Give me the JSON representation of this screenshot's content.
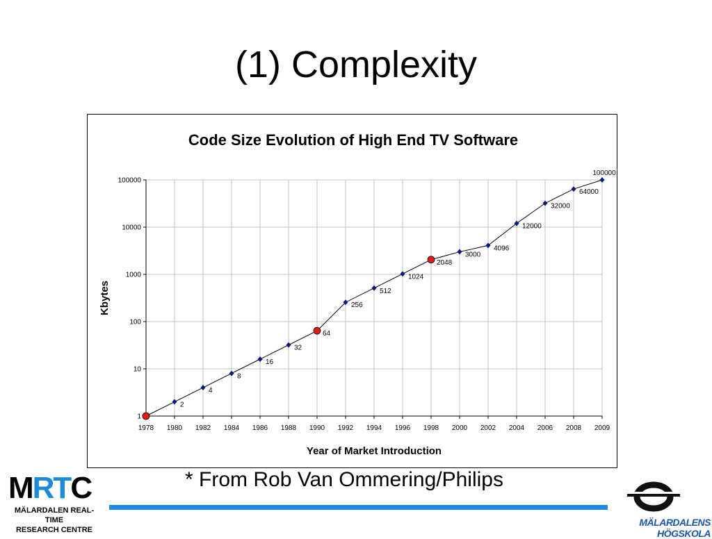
{
  "slide": {
    "title": "(1) Complexity",
    "footnote": "* From Rob Van Ommering/Philips"
  },
  "logos": {
    "mrtc_word_black1": "M",
    "mrtc_word_blue": "RT",
    "mrtc_word_black2": "C",
    "mrtc_sub1": "MÄLARDALEN REAL-TIME",
    "mrtc_sub2": "RESEARCH CENTRE",
    "mdh_text": "MÄLARDALENS HÖGSKOLA"
  },
  "colors": {
    "line": "#000000",
    "marker": "#0a1a7a",
    "highlight": "#e11a1a",
    "rule": "#1c8be0",
    "grid": "#c0c0c0"
  },
  "chart_data": {
    "type": "line",
    "title": "Code Size Evolution of High End TV Software",
    "xlabel": "Year of Market Introduction",
    "ylabel": "Kbytes",
    "yscale": "log",
    "ylim": [
      1,
      100000
    ],
    "yticks": [
      "1",
      "10",
      "100",
      "1000",
      "10000",
      "100000"
    ],
    "categories": [
      "1978",
      "1980",
      "1982",
      "1984",
      "1986",
      "1988",
      "1990",
      "1992",
      "1994",
      "1996",
      "1998",
      "2000",
      "2002",
      "2004",
      "2006",
      "2008",
      "2009"
    ],
    "values": [
      1,
      2,
      4,
      8,
      16,
      32,
      64,
      256,
      512,
      1024,
      2048,
      3000,
      4096,
      12000,
      32000,
      64000,
      100000
    ],
    "data_labels": [
      "",
      "2",
      "4",
      "8",
      "16",
      "32",
      "64",
      "256",
      "512",
      "1024",
      "2048",
      "3000",
      "4096",
      "12000",
      "32000",
      "64000",
      "100000"
    ],
    "highlighted_points": [
      "1978",
      "1990",
      "1998"
    ],
    "grid": true,
    "legend": "none"
  }
}
